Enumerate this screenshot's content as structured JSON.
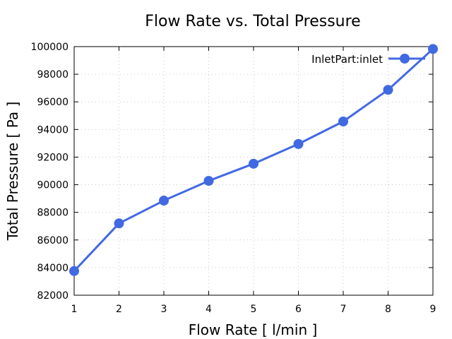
{
  "chart_data": {
    "type": "line",
    "title": "Flow Rate vs. Total Pressure",
    "xlabel": "Flow Rate [ l/min ]",
    "ylabel": "Total Pressure [ Pa ]",
    "xlim": [
      1,
      9
    ],
    "ylim": [
      82000,
      100000
    ],
    "xticks": [
      1,
      2,
      3,
      4,
      5,
      6,
      7,
      8,
      9
    ],
    "yticks": [
      82000,
      84000,
      86000,
      88000,
      90000,
      92000,
      94000,
      96000,
      98000,
      100000
    ],
    "grid": true,
    "legend_position": "top-right",
    "series": [
      {
        "name": "InletPart:inlet",
        "color": "#4169e1",
        "x": [
          1,
          2,
          3,
          4,
          5,
          6,
          7,
          8,
          9
        ],
        "values": [
          83750,
          87200,
          88850,
          90280,
          91520,
          92950,
          94580,
          96870,
          99830
        ]
      }
    ]
  }
}
